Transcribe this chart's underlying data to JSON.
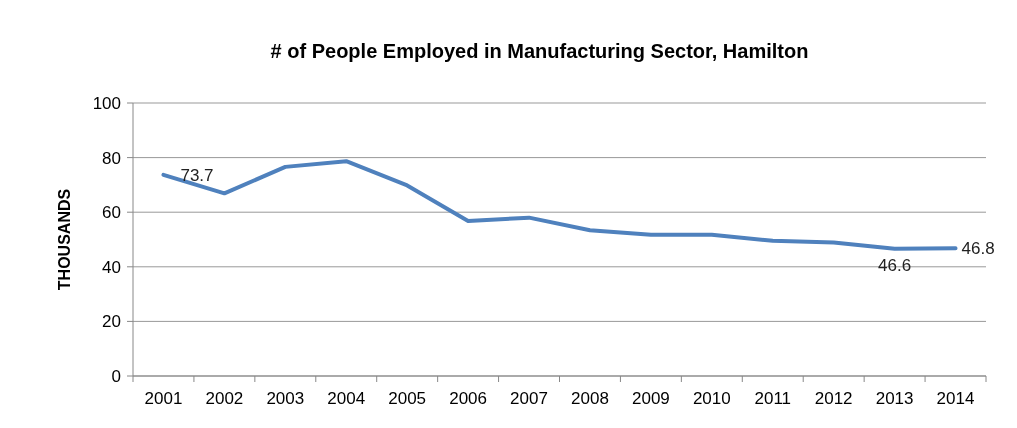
{
  "chart_data": {
    "type": "line",
    "title": "# of People Employed in Manufacturing Sector, Hamilton",
    "ylabel": "THOUSANDS",
    "categories": [
      "2001",
      "2002",
      "2003",
      "2004",
      "2005",
      "2006",
      "2007",
      "2008",
      "2009",
      "2010",
      "2011",
      "2012",
      "2013",
      "2014"
    ],
    "series": [
      {
        "color": "#4f81bd",
        "values": [
          73.7,
          66.9,
          76.6,
          78.7,
          69.8,
          56.8,
          58.0,
          53.4,
          51.7,
          51.7,
          49.5,
          48.9,
          46.6,
          46.8
        ],
        "value_labels": [
          "73.7",
          null,
          null,
          null,
          null,
          null,
          null,
          null,
          null,
          null,
          null,
          null,
          "46.6",
          "46.8"
        ]
      }
    ],
    "ylim": [
      0,
      100
    ],
    "yticks": [
      0,
      20,
      40,
      60,
      80,
      100
    ],
    "grid": "y",
    "marker": "none",
    "line_style": "solid"
  }
}
